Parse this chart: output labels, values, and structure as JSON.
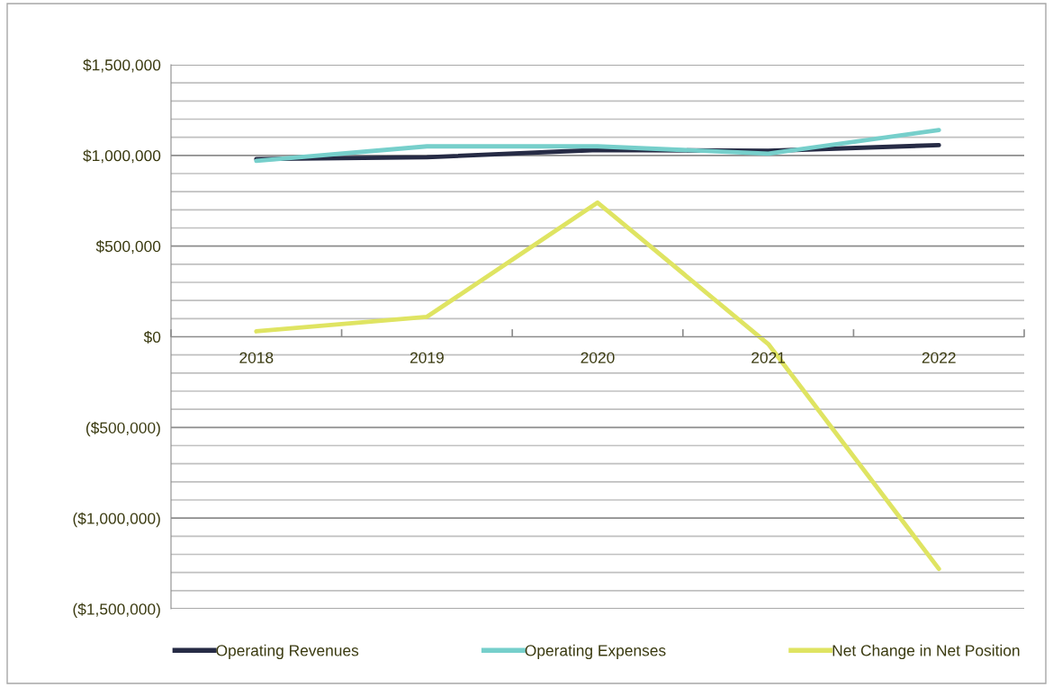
{
  "chart_data": {
    "type": "line",
    "categories": [
      "2018",
      "2019",
      "2020",
      "2021",
      "2022"
    ],
    "series": [
      {
        "name": "Operating Revenues",
        "color": "#262b45",
        "values": [
          980000,
          990000,
          1030000,
          1025000,
          1057000
        ]
      },
      {
        "name": "Operating Expenses",
        "color": "#76cfcb",
        "values": [
          970000,
          1050000,
          1050000,
          1010000,
          1140000
        ]
      },
      {
        "name": "Net Change in Net Position",
        "color": "#dfe462",
        "values": [
          30000,
          110000,
          740000,
          -40000,
          -1280000
        ]
      }
    ],
    "ylim": [
      -1500000,
      1500000
    ],
    "yticks": [
      {
        "value": -1500000,
        "label": "($1,500,000)"
      },
      {
        "value": -1400000,
        "label": null
      },
      {
        "value": -1300000,
        "label": null
      },
      {
        "value": -1200000,
        "label": null
      },
      {
        "value": -1100000,
        "label": null
      },
      {
        "value": -1000000,
        "label": "($1,000,000)"
      },
      {
        "value": -900000,
        "label": null
      },
      {
        "value": -800000,
        "label": null
      },
      {
        "value": -700000,
        "label": null
      },
      {
        "value": -600000,
        "label": null
      },
      {
        "value": -500000,
        "label": "($500,000)"
      },
      {
        "value": -400000,
        "label": null
      },
      {
        "value": -300000,
        "label": null
      },
      {
        "value": -200000,
        "label": null
      },
      {
        "value": -100000,
        "label": null
      },
      {
        "value": 0,
        "label": "$0"
      },
      {
        "value": 100000,
        "label": null
      },
      {
        "value": 200000,
        "label": null
      },
      {
        "value": 300000,
        "label": null
      },
      {
        "value": 400000,
        "label": null
      },
      {
        "value": 500000,
        "label": "$500,000"
      },
      {
        "value": 600000,
        "label": null
      },
      {
        "value": 700000,
        "label": null
      },
      {
        "value": 800000,
        "label": null
      },
      {
        "value": 900000,
        "label": null
      },
      {
        "value": 1000000,
        "label": "$1,000,000"
      },
      {
        "value": 1100000,
        "label": null
      },
      {
        "value": 1200000,
        "label": null
      },
      {
        "value": 1300000,
        "label": null
      },
      {
        "value": 1400000,
        "label": null
      },
      {
        "value": 1500000,
        "label": "$1,500,000"
      }
    ],
    "grid": "y",
    "legend": "bottom",
    "marker": "none",
    "line_style": "solid"
  }
}
